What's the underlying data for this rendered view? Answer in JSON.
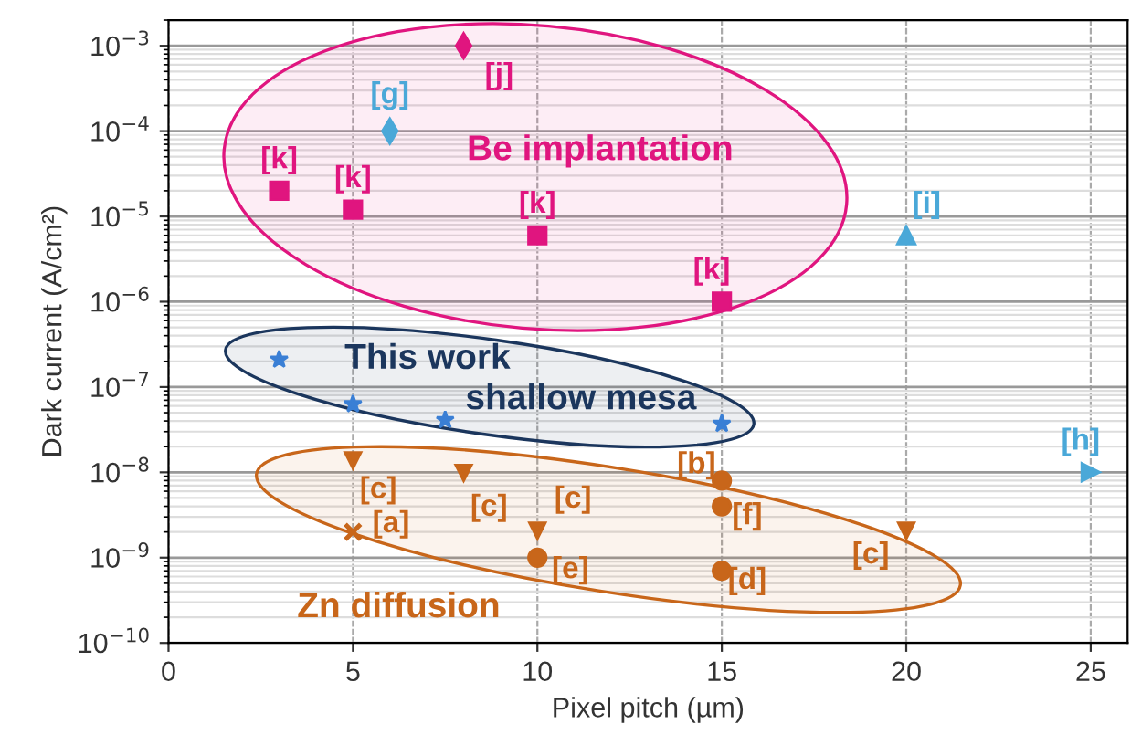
{
  "chart_data": {
    "type": "scatter",
    "xlabel": "Pixel pitch (µm)",
    "ylabel": "Dark current (A/cm²)",
    "log": "y",
    "grid": true,
    "xlim": [
      0,
      26
    ],
    "xticks": [
      0,
      5,
      10,
      15,
      20,
      25
    ],
    "ylim": [
      1e-10,
      0.002
    ],
    "yticks": [
      {
        "value": 1e-10,
        "label": "10$^{−10}$"
      },
      {
        "value": 1e-09,
        "label": "10$^{−9}$"
      },
      {
        "value": 1e-08,
        "label": "10$^{−8}$"
      },
      {
        "value": 1e-07,
        "label": "10$^{−7}$"
      },
      {
        "value": 1e-06,
        "label": "10$^{−6}$"
      },
      {
        "value": 1e-05,
        "label": "10$^{−5}$"
      },
      {
        "value": 0.0001,
        "label": "10$^{−4}$"
      },
      {
        "value": 0.001,
        "label": "10$^{−3}$"
      }
    ],
    "series": [
      {
        "color": "#e0157f",
        "marker": "diamond",
        "x": [
          8
        ],
        "values": [
          0.001
        ]
      },
      {
        "color": "#e0157f",
        "marker": "square",
        "x": [
          3,
          5,
          10,
          15
        ],
        "values": [
          2e-05,
          1.2e-05,
          6e-06,
          1e-06
        ]
      },
      {
        "color": "#4aa8d8",
        "marker": "diamond",
        "x": [
          6
        ],
        "values": [
          0.0001
        ]
      },
      {
        "color": "#4aa8d8",
        "marker": "triangle",
        "x": [
          20
        ],
        "values": [
          6e-06
        ]
      },
      {
        "color": "#4aa8d8",
        "marker": "triangle_right",
        "x": [
          25
        ],
        "values": [
          1e-08
        ]
      },
      {
        "color": "#3a7fd5",
        "marker": "star",
        "x": [
          3,
          5,
          7.5,
          15
        ],
        "values": [
          2.1e-07,
          6.3e-08,
          4.1e-08,
          3.7e-08
        ]
      },
      {
        "color": "#c8661a",
        "marker": "triangle_down",
        "x": [
          5,
          8,
          10,
          20
        ],
        "values": [
          1.4e-08,
          1e-08,
          2.1e-09,
          2.1e-09
        ]
      },
      {
        "color": "#c8661a",
        "marker": "cross",
        "x": [
          5
        ],
        "values": [
          2e-09
        ]
      },
      {
        "color": "#c8661a",
        "marker": "circle",
        "x": [
          15,
          15,
          10,
          15
        ],
        "values": [
          8e-09,
          4e-09,
          1e-09,
          7e-10
        ]
      }
    ],
    "annotations": [
      {
        "text": "[j]",
        "x": 8,
        "y": 0.001
      },
      {
        "text": "[g]",
        "x": 6,
        "y": 0.0001
      },
      {
        "text": "[k]",
        "x": 3,
        "y": 2e-05
      },
      {
        "text": "[k]",
        "x": 5,
        "y": 1.2e-05
      },
      {
        "text": "[k]",
        "x": 10,
        "y": 6e-06
      },
      {
        "text": "[k]",
        "x": 15,
        "y": 1e-06
      },
      {
        "text": "[i]",
        "x": 20,
        "y": 6e-06
      },
      {
        "text": "[h]",
        "x": 25,
        "y": 1e-08
      },
      {
        "text": "[c]",
        "x": 5,
        "y": 1.4e-08
      },
      {
        "text": "[c]",
        "x": 8,
        "y": 1e-08
      },
      {
        "text": "[c]",
        "x": 10,
        "y": 2.1e-09
      },
      {
        "text": "[c]",
        "x": 20,
        "y": 2.1e-09
      },
      {
        "text": "[a]",
        "x": 5,
        "y": 2e-09
      },
      {
        "text": "[b]",
        "x": 15,
        "y": 8e-09
      },
      {
        "text": "[f]",
        "x": 15,
        "y": 4e-09
      },
      {
        "text": "[e]",
        "x": 10,
        "y": 1e-09
      },
      {
        "text": "[d]",
        "x": 15,
        "y": 7e-10
      },
      "Be implantation",
      "This work",
      "shallow mesa",
      "Zn diffusion"
    ]
  }
}
